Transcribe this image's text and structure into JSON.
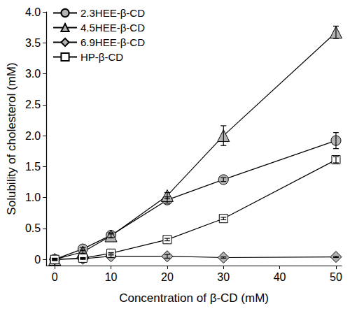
{
  "chart_data": {
    "type": "line",
    "x_label": "Concentration of β-CD (mM)",
    "y_label": "Solubility of cholesterol (mM)",
    "x": [
      0,
      5,
      10,
      20,
      30,
      50
    ],
    "series": [
      {
        "name": "2.3HEE-β-CD",
        "color": "#b3b3b3",
        "marker": "circle",
        "values": [
          0,
          0.17,
          0.39,
          0.96,
          1.29,
          1.92
        ],
        "errors": [
          0.02,
          0.02,
          0.04,
          0.05,
          0.03,
          0.13
        ]
      },
      {
        "name": "4.5HEE-β-CD",
        "color": "#b3b3b3",
        "marker": "triangle",
        "values": [
          0,
          0.12,
          0.38,
          1.03,
          2.0,
          3.67
        ],
        "errors": [
          0.01,
          0.02,
          0.03,
          0.05,
          0.16,
          0.1
        ]
      },
      {
        "name": "6.9HEE-β-CD",
        "color": "#b3b3b3",
        "marker": "diamond",
        "values": [
          0,
          0.01,
          0.05,
          0.05,
          0.03,
          0.04
        ],
        "errors": [
          0.01,
          0.01,
          0.02,
          0.03,
          0.01,
          0.01
        ]
      },
      {
        "name": "HP-β-CD",
        "color": "#ffffff",
        "marker": "square",
        "values": [
          0,
          0.02,
          0.1,
          0.32,
          0.66,
          1.61
        ],
        "errors": [
          0.01,
          0.01,
          0.01,
          0.02,
          0.02,
          0.05
        ]
      }
    ],
    "xlim": [
      -1.5,
      51
    ],
    "xticks": [
      0,
      10,
      20,
      30,
      40,
      50
    ],
    "ylim": [
      -0.1,
      4.0
    ],
    "yticks": [
      0,
      0.5,
      {
        "value": 1,
        "label": "1.0"
      },
      1.5,
      {
        "value": 2,
        "label": "2.0"
      },
      2.5,
      {
        "value": 3,
        "label": "3.0"
      },
      3.5,
      {
        "value": 4,
        "label": "4.0"
      }
    ],
    "grid": false,
    "legend": "upper left"
  }
}
